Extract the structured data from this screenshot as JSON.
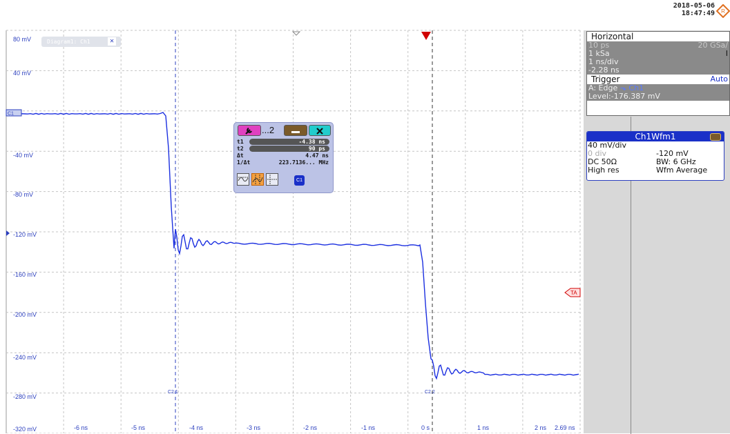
{
  "timestamp": {
    "date": "2018-05-06",
    "time": "18:47:49"
  },
  "diagram": {
    "tab_label": "Diagram1: Ch1",
    "close_glyph": "✕",
    "marker_c1": "C1",
    "cursor_c21": "C2.1",
    "cursor_c22": "C2.2",
    "trigger_marker": "TA"
  },
  "y_axis": [
    "80 mV",
    "40 mV",
    "-40 mV",
    "-80 mV",
    "-120 mV",
    "-160 mV",
    "-200 mV",
    "-240 mV",
    "-280 mV",
    "-320 mV"
  ],
  "x_axis": [
    "-6 ns",
    "-5 ns",
    "-4 ns",
    "-3 ns",
    "-2 ns",
    "-1 ns",
    "0 s",
    "1 ns",
    "2 ns",
    "2.69 ns"
  ],
  "cursor_dialog": {
    "title_suffix": "...2",
    "t1_label": "t1",
    "t1_value": "-4.38 ns",
    "t2_label": "t2",
    "t2_value": "90 ps",
    "dt_label": "Δt",
    "dt_value": "4.47 ns",
    "inv_label": "1/Δt",
    "inv_value": "223.7136... MHz",
    "source": "C1"
  },
  "horizontal": {
    "title": "Horizontal",
    "resolution": "10 ps",
    "sample_rate": "20 GSa/",
    "record_length": "1 kSa",
    "record_suffix": "I",
    "timebase": "1 ns/div",
    "offset": "-2.28 ns"
  },
  "trigger": {
    "title": "Trigger",
    "mode": "Auto",
    "type_line": "A:   Edge",
    "source": "Ch1",
    "level": "Level:-176.387 mV"
  },
  "waveform": {
    "title": "Ch1Wfm1",
    "scale": "40 mV/div",
    "position": "0 div",
    "offset": "-120 mV",
    "coupling": "DC 50Ω",
    "bandwidth": "BW: 6 GHz",
    "decimation": "High res",
    "arithmetic": "Wfm Average"
  },
  "colors": {
    "trace": "#1a2ee0",
    "accent": "#1a30c8",
    "trigger_marker": "#d00000"
  }
}
